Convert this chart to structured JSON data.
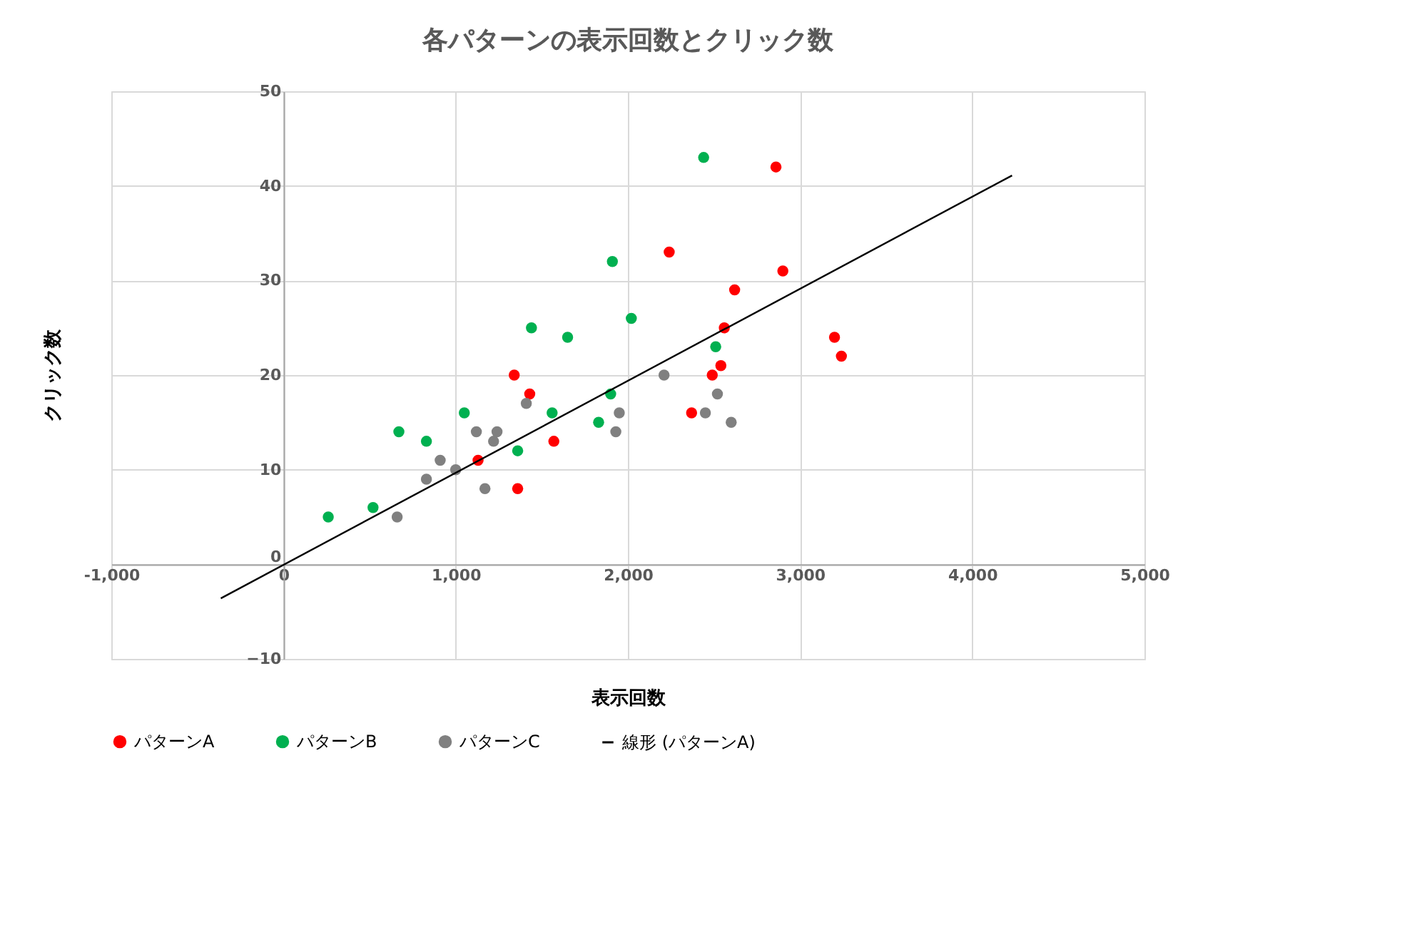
{
  "chart_data": {
    "type": "scatter",
    "title": "各パターンの表示回数とクリック数",
    "xlabel": "表示回数",
    "ylabel": "クリック数",
    "xlim": [
      -1000,
      5000
    ],
    "xticks": [
      {
        "value": -1000,
        "label": "-1,000"
      },
      0,
      {
        "value": 1000,
        "label": "1,000"
      },
      {
        "value": 2000,
        "label": "2,000"
      },
      {
        "value": 3000,
        "label": "3,000"
      },
      {
        "value": 4000,
        "label": "4,000"
      },
      {
        "value": 5000,
        "label": "5,000"
      }
    ],
    "ylim": [
      -10,
      50
    ],
    "yticks": [
      -10,
      0,
      10,
      20,
      30,
      40,
      50
    ],
    "grid": true,
    "legend": "bottom",
    "marker": "circle",
    "series": [
      {
        "name": "パターンA",
        "color": "#ff0000",
        "x": [
          2860,
          2240,
          2900,
          2620,
          2560,
          3200,
          3240,
          2540,
          2490,
          1340,
          1430,
          2370,
          1570,
          1130,
          1360
        ],
        "values": [
          42,
          33,
          31,
          29,
          25,
          24,
          22,
          21,
          20,
          20,
          18,
          16,
          13,
          11,
          8
        ]
      },
      {
        "name": "パターンB",
        "color": "#00b050",
        "x": [
          2440,
          1910,
          2020,
          1440,
          1650,
          2510,
          1900,
          1560,
          1050,
          1830,
          670,
          830,
          1360,
          520,
          260
        ],
        "values": [
          43,
          32,
          26,
          25,
          24,
          23,
          18,
          16,
          16,
          15,
          14,
          13,
          12,
          6,
          5
        ]
      },
      {
        "name": "パターンC",
        "color": "#808080",
        "x": [
          660,
          830,
          910,
          1000,
          1120,
          1170,
          1220,
          1240,
          1410,
          1930,
          1950,
          2210,
          2450,
          2520,
          2600
        ],
        "values": [
          5,
          9,
          11,
          10,
          14,
          8,
          13,
          14,
          17,
          14,
          16,
          20,
          16,
          18,
          15
        ]
      },
      {
        "name": "線形 (パターンA)",
        "type": "line",
        "color": "#000000",
        "line_style": "solid",
        "marker": "none",
        "x": [
          -364,
          4231
        ],
        "values": [
          -3.6,
          41.1
        ]
      }
    ]
  }
}
